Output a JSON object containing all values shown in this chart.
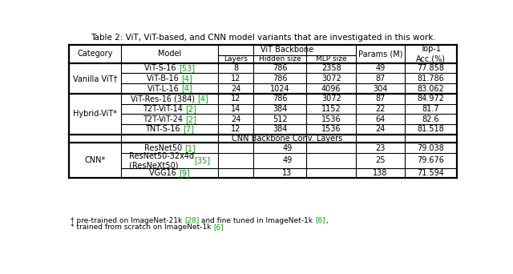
{
  "title": "Table 2: ViT, ViT-based, and CNN model variants that are investigated in this work.",
  "green": "#00aa00",
  "black": "#000000",
  "white": "#ffffff",
  "vanilla_category": "Vanilla ViT†",
  "hybrid_category": "Hybrid-ViT*",
  "cnn_category": "CNN*",
  "cnn_header": "CNN Backbone Conv. Layers",
  "vanilla_rows": [
    {
      "plain": "ViT-S-16 ",
      "ref": "[53]",
      "layers": "8",
      "hidden": "786",
      "mlp": "2358",
      "params": "49",
      "top1": "77.858"
    },
    {
      "plain": "ViT-B-16 ",
      "ref": "[4]",
      "layers": "12",
      "hidden": "786",
      "mlp": "3072",
      "params": "87",
      "top1": "81.786"
    },
    {
      "plain": "ViT-L-16 ",
      "ref": "[4]",
      "layers": "24",
      "hidden": "1024",
      "mlp": "4096",
      "params": "304",
      "top1": "83.062"
    }
  ],
  "hybrid_rows": [
    {
      "plain": "ViT-Res-16 (384) ",
      "ref": "[4]",
      "layers": "12",
      "hidden": "786",
      "mlp": "3072",
      "params": "87",
      "top1": "84.972"
    },
    {
      "plain": "T2T-ViT-14 ",
      "ref": "[2]",
      "layers": "14",
      "hidden": "384",
      "mlp": "1152",
      "params": "22",
      "top1": "81.7"
    },
    {
      "plain": "T2T-ViT-24 ",
      "ref": "[2]",
      "layers": "24",
      "hidden": "512",
      "mlp": "1536",
      "params": "64",
      "top1": "82.6"
    },
    {
      "plain": "TNT-S-16 ",
      "ref": "[7]",
      "layers": "12",
      "hidden": "384",
      "mlp": "1536",
      "params": "24",
      "top1": "81.518"
    }
  ],
  "cnn_rows": [
    {
      "plain": "ResNet50 ",
      "ref": "[1]",
      "cnn_val": "49",
      "params": "23",
      "top1": "79.038"
    },
    {
      "plain": "ResNet50-32x4d\n(ResNeXt50) ",
      "ref": "[35]",
      "cnn_val": "49",
      "params": "25",
      "top1": "79.676"
    },
    {
      "plain": "VGG16 ",
      "ref": "[9]",
      "cnn_val": "13",
      "params": "138",
      "top1": "71.594"
    }
  ],
  "fn1_parts": [
    [
      "† pre-trained on ImageNet-21k ",
      "black"
    ],
    [
      "[28]",
      "green"
    ],
    [
      " and fine tuned in ImageNet-1k ",
      "black"
    ],
    [
      "[6]",
      "green"
    ],
    [
      ",",
      "black"
    ]
  ],
  "fn2_parts": [
    [
      "* trained from scratch on ImageNet-1k ",
      "black"
    ],
    [
      "[6]",
      "green"
    ]
  ]
}
